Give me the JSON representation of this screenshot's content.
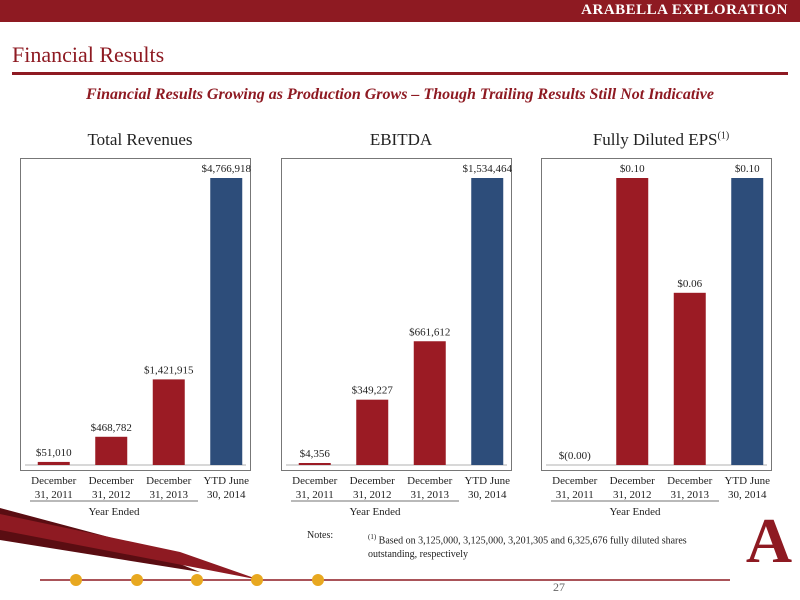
{
  "header": {
    "company": "ARABELLA EXPLORATION",
    "title": "Financial Results"
  },
  "subtitle": "Financial Results Growing as Production Grows – Though Trailing Results Still Not Indicative",
  "colors": {
    "brand_red": "#8e1a22",
    "bar_red": "#9b1b24",
    "bar_blue": "#2d4d7a"
  },
  "chart_data": [
    {
      "type": "bar",
      "title": "Total Revenues",
      "categories": [
        "December\n31, 2011",
        "December\n31, 2012",
        "December\n31, 2013",
        "YTD June\n30, 2014"
      ],
      "values": [
        51010,
        468782,
        1421915,
        4766918
      ],
      "labels": [
        "$51,010",
        "$468,782",
        "$1,421,915",
        "$4,766,918"
      ],
      "bar_colors": [
        "#9b1b24",
        "#9b1b24",
        "#9b1b24",
        "#2d4d7a"
      ],
      "xlabel": "Year Ended",
      "ylim": [
        0,
        4766918
      ]
    },
    {
      "type": "bar",
      "title": "EBITDA",
      "categories": [
        "December\n31, 2011",
        "December\n31, 2012",
        "December\n31, 2013",
        "YTD June\n30, 2014"
      ],
      "values": [
        4356,
        349227,
        661612,
        1534464
      ],
      "labels": [
        "$4,356",
        "$349,227",
        "$661,612",
        "$1,534,464"
      ],
      "bar_colors": [
        "#9b1b24",
        "#9b1b24",
        "#9b1b24",
        "#2d4d7a"
      ],
      "xlabel": "Year Ended",
      "ylim": [
        0,
        1534464
      ]
    },
    {
      "type": "bar",
      "title": "Fully Diluted EPS",
      "title_sup": "(1)",
      "categories": [
        "December\n31, 2011",
        "December\n31, 2012",
        "December\n31, 2013",
        "YTD June\n30, 2014"
      ],
      "values": [
        0.0,
        0.1,
        0.06,
        0.1
      ],
      "labels": [
        "$(0.00)",
        "$0.10",
        "$0.06",
        "$0.10"
      ],
      "bar_colors": [
        "#9b1b24",
        "#9b1b24",
        "#9b1b24",
        "#2d4d7a"
      ],
      "xlabel": "Year Ended",
      "ylim": [
        0,
        0.1
      ]
    }
  ],
  "notes": {
    "label": "Notes:",
    "marker": "(1)",
    "text": "Based on 3,125,000, 3,125,000, 3,201,305 and 6,325,676 fully diluted shares outstanding, respectively"
  },
  "page_number": "27",
  "logo": {
    "letter": "A"
  }
}
